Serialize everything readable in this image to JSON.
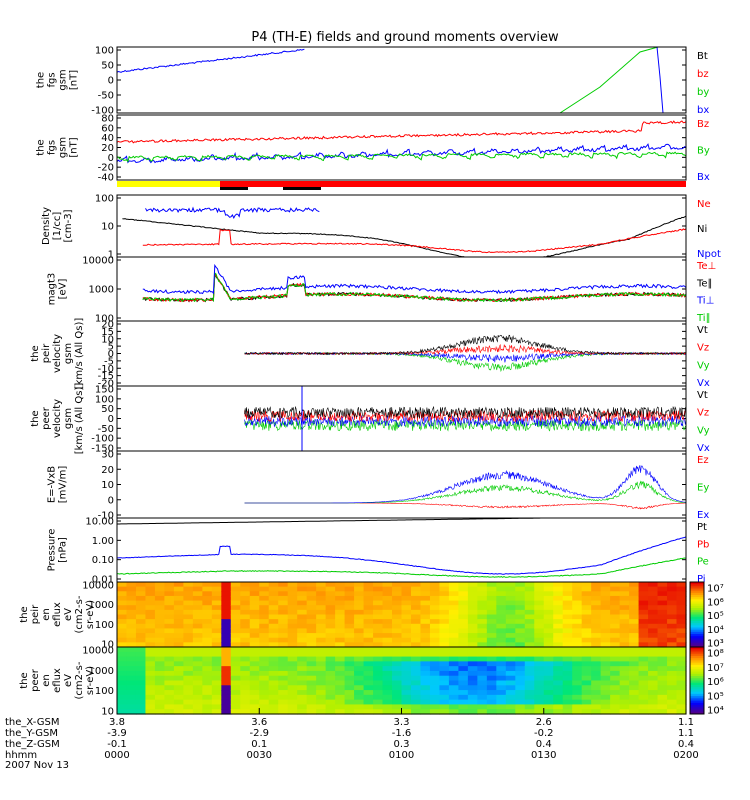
{
  "title": "P4 (TH-E) fields and ground moments overview",
  "colors": {
    "black": "#000000",
    "red": "#ff0000",
    "green": "#00cc00",
    "blue": "#0000ff",
    "yellow": "#ffff00"
  },
  "chart_data": {
    "type": "line",
    "x_axis": {
      "time_ticks": [
        "0000",
        "0030",
        "0100",
        "0130",
        "0200"
      ],
      "rows": [
        {
          "label": "the_X-GSM",
          "values": [
            "3.8",
            "3.6",
            "3.3",
            "2.6",
            "1.1"
          ]
        },
        {
          "label": "the_Y-GSM",
          "values": [
            "-3.9",
            "-2.9",
            "-1.6",
            "-0.2",
            "1.1"
          ]
        },
        {
          "label": "the_Z-GSM",
          "values": [
            "-0.1",
            "0.1",
            "0.3",
            "0.4",
            "0.4"
          ]
        },
        {
          "label": "hhmm",
          "values": []
        }
      ],
      "date": "2007 Nov 13"
    },
    "panels": [
      {
        "id": "fgs-dsl",
        "ylabel": [
          "the",
          "fgs",
          "gsm",
          "[nT]"
        ],
        "yticks": [
          "100",
          "50",
          "0",
          "-50",
          "-100"
        ],
        "legend": [
          {
            "name": "Bt",
            "color": "#000000"
          },
          {
            "name": "bz",
            "color": "#ff0000"
          },
          {
            "name": "by",
            "color": "#00cc00"
          },
          {
            "name": "bx",
            "color": "#0000ff"
          }
        ]
      },
      {
        "id": "fgs-gse",
        "ylabel": [
          "the",
          "fgs",
          "gsm",
          "[nT]"
        ],
        "yticks": [
          "80",
          "60",
          "40",
          "20",
          "0",
          "-20",
          "-40"
        ],
        "legend": [
          {
            "name": "Bz",
            "color": "#ff0000"
          },
          {
            "name": "By",
            "color": "#00cc00"
          },
          {
            "name": "Bx",
            "color": "#0000ff"
          }
        ]
      },
      {
        "id": "density",
        "ylabel": [
          "Density",
          "[1/cc]",
          "[cm-3]"
        ],
        "yticks": [
          "100",
          "10",
          "1"
        ],
        "legend": [
          {
            "name": "Ne",
            "color": "#ff0000"
          },
          {
            "name": "Ni",
            "color": "#000000"
          },
          {
            "name": "Npot",
            "color": "#0000ff"
          }
        ]
      },
      {
        "id": "temp",
        "ylabel": [
          "magt3",
          "[eV]"
        ],
        "yticks": [
          "10000",
          "1000",
          "100"
        ],
        "legend": [
          {
            "name": "Te⊥",
            "color": "#ff0000"
          },
          {
            "name": "Te∥",
            "color": "#000000"
          },
          {
            "name": "Ti⊥",
            "color": "#0000ff"
          },
          {
            "name": "Ti∥",
            "color": "#00cc00"
          }
        ]
      },
      {
        "id": "peir-vel",
        "ylabel": [
          "the",
          "peir",
          "velocity",
          "gsm",
          "[km/s (All Qs)]"
        ],
        "yticks": [
          "20",
          "15",
          "10",
          "5",
          "0",
          "-5",
          "-10",
          "-15",
          "-20"
        ],
        "legend": [
          {
            "name": "Vt",
            "color": "#000000"
          },
          {
            "name": "Vz",
            "color": "#ff0000"
          },
          {
            "name": "Vy",
            "color": "#00cc00"
          },
          {
            "name": "Vx",
            "color": "#0000ff"
          }
        ]
      },
      {
        "id": "peer-vel",
        "ylabel": [
          "the",
          "peer",
          "velocity",
          "gsm",
          "[km/s (All Qs)]"
        ],
        "yticks": [
          "150",
          "100",
          "50",
          "0",
          "-50",
          "-100",
          "-150"
        ],
        "legend": [
          {
            "name": "Vt",
            "color": "#000000"
          },
          {
            "name": "Vz",
            "color": "#ff0000"
          },
          {
            "name": "Vy",
            "color": "#00cc00"
          },
          {
            "name": "Vx",
            "color": "#0000ff"
          }
        ]
      },
      {
        "id": "efield",
        "ylabel": [
          "E=-VxB",
          "[mV/m]"
        ],
        "yticks": [
          "30",
          "20",
          "10",
          "0",
          "-10"
        ],
        "legend": [
          {
            "name": "Ez",
            "color": "#ff0000"
          },
          {
            "name": "Ey",
            "color": "#00cc00"
          },
          {
            "name": "Ex",
            "color": "#0000ff"
          }
        ]
      },
      {
        "id": "pressure",
        "ylabel": [
          "Pressure",
          "[nPa]"
        ],
        "yticks": [
          "10.00",
          "1.00",
          "0.10",
          "0.01"
        ],
        "legend": [
          {
            "name": "Pt",
            "color": "#000000"
          },
          {
            "name": "Pb",
            "color": "#ff0000"
          },
          {
            "name": "Pe",
            "color": "#00cc00"
          },
          {
            "name": "Pi",
            "color": "#0000ff"
          }
        ]
      },
      {
        "id": "peir-spec",
        "ylabel": [
          "the",
          "peir",
          "en",
          "eflux",
          "eV",
          "(cm2-s-",
          "sr-eV)"
        ],
        "yticks": [
          "10000",
          "1000",
          "100",
          "10"
        ],
        "colorbar": [
          "10⁷",
          "10⁶",
          "10⁵",
          "10⁴",
          "10³"
        ]
      },
      {
        "id": "peer-spec",
        "ylabel": [
          "the",
          "peer",
          "en",
          "eflux",
          "eV",
          "(cm2-s-",
          "sr-eV)"
        ],
        "yticks": [
          "10000",
          "1000",
          "100",
          "10"
        ],
        "colorbar": [
          "10⁸",
          "10⁷",
          "10⁶",
          "10⁵",
          "10⁴"
        ]
      }
    ]
  }
}
